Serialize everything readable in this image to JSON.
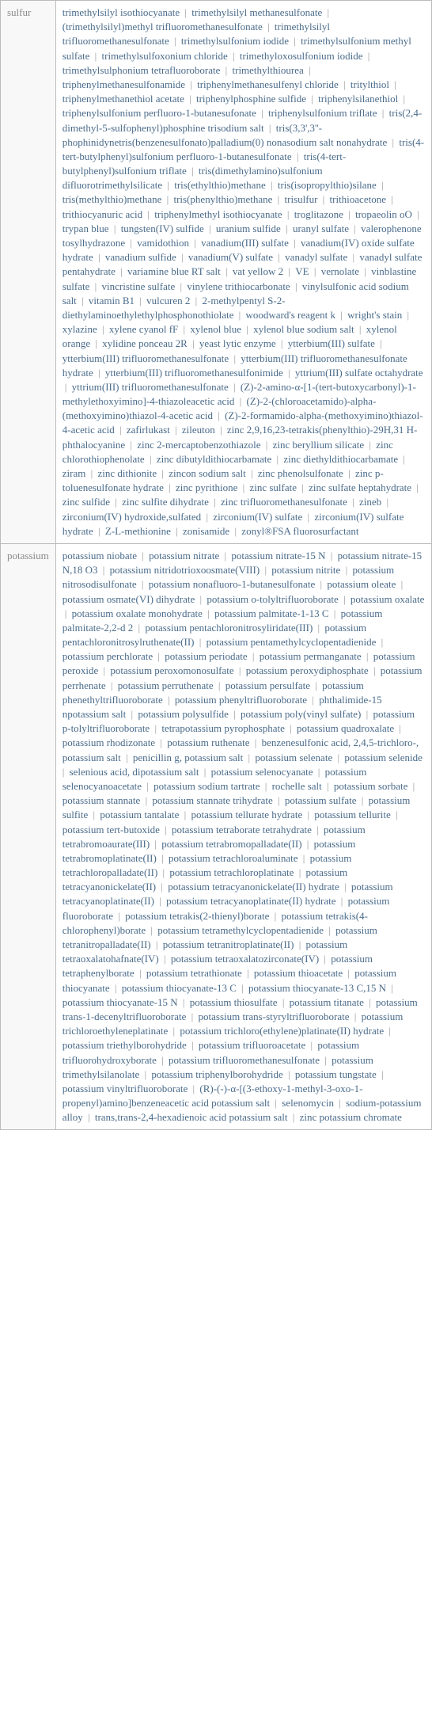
{
  "rows": [
    {
      "label": "sulfur",
      "items": [
        "trimethylsilyl isothiocyanate",
        "trimethylsilyl methanesulfonate",
        "(trimethylsilyl)methyl trifluoromethanesulfonate",
        "trimethylsilyl trifluoromethanesulfonate",
        "trimethylsulfonium iodide",
        "trimethylsulfonium methyl sulfate",
        "trimethylsulfoxonium chloride",
        "trimethyloxosulfonium iodide",
        "trimethylsulphonium tetrafluoroborate",
        "trimethylthiourea",
        "triphenylmethanesulfonamide",
        "triphenylmethanesulfenyl chloride",
        "tritylthiol",
        "triphenylmethanethiol acetate",
        "triphenylphosphine sulfide",
        "triphenylsilanethiol",
        "triphenylsulfonium perfluoro-1-butanesufonate",
        "triphenylsulfonium triflate",
        "tris(2,4-dimethyl-5-sulfophenyl)phosphine trisodium salt",
        "tris(3,3',3''-phophinidynetris(benzenesulfonato)palladium(0) nonasodium salt nonahydrate",
        "tris(4-tert-butylphenyl)sulfonium perfluoro-1-butanesulfonate",
        "tris(4-tert-butylphenyl)sulfonium triflate",
        "tris(dimethylamino)sulfonium difluorotrimethylsilicate",
        "tris(ethylthio)methane",
        "tris(isopropylthio)silane",
        "tris(methylthio)methane",
        "tris(phenylthio)methane",
        "trisulfur",
        "trithioacetone",
        "trithiocyanuric acid",
        "triphenylmethyl isothiocyanate",
        "troglitazone",
        "tropaeolin oO",
        "trypan blue",
        "tungsten(IV) sulfide",
        "uranium sulfide",
        "uranyl sulfate",
        "valerophenone tosylhydrazone",
        "vamidothion",
        "vanadium(III) sulfate",
        "vanadium(IV) oxide sulfate hydrate",
        "vanadium sulfide",
        "vanadium(V) sulfate",
        "vanadyl sulfate",
        "vanadyl sulfate pentahydrate",
        "variamine blue RT salt",
        "vat yellow 2",
        "VE",
        "vernolate",
        "vinblastine sulfate",
        "vincristine sulfate",
        "vinylene trithiocarbonate",
        "vinylsulfonic acid sodium salt",
        "vitamin B1",
        "vulcuren 2",
        "2-methylpentyl S-2-diethylaminoethylethylphosphonothiolate",
        "woodward's reagent k",
        "wright's stain",
        "xylazine",
        "xylene cyanol fF",
        "xylenol blue",
        "xylenol blue sodium salt",
        "xylenol orange",
        "xylidine ponceau 2R",
        "yeast lytic enzyme",
        "ytterbium(III) sulfate",
        "ytterbium(III) trifluoromethanesulfonate",
        "ytterbium(III) trifluoromethanesulfonate hydrate",
        "ytterbium(III) trifluoromethanesulfonimide",
        "yttrium(III) sulfate octahydrate",
        "yttrium(III) trifluoromethanesulfonate",
        "(Z)-2-amino-α-[1-(tert-butoxycarbonyl)-1-methylethoxyimino]-4-thiazoleacetic acid",
        "(Z)-2-(chloroacetamido)-alpha-(methoxyimino)thiazol-4-acetic acid",
        "(Z)-2-formamido-alpha-(methoxyimino)thiazol-4-acetic acid",
        "zafirlukast",
        "zileuton",
        "zinc 2,9,16,23-tetrakis(phenylthio)-29H,31 H-phthalocyanine",
        "zinc 2-mercaptobenzothiazole",
        "zinc beryllium silicate",
        "zinc chlorothiophenolate",
        "zinc dibutyldithiocarbamate",
        "zinc diethyldithiocarbamate",
        "ziram",
        "zinc dithionite",
        "zincon sodium salt",
        "zinc phenolsulfonate",
        "zinc p-toluenesulfonate hydrate",
        "zinc pyrithione",
        "zinc sulfate",
        "zinc sulfate heptahydrate",
        "zinc sulfide",
        "zinc sulfite dihydrate",
        "zinc trifluoromethanesulfonate",
        "zineb",
        "zirconium(IV) hydroxide,sulfated",
        "zirconium(IV) sulfate",
        "zirconium(IV) sulfate hydrate",
        "Z-L-methionine",
        "zonisamide",
        "zonyl®FSA fluorosurfactant"
      ]
    },
    {
      "label": "potassium",
      "items": [
        "potassium niobate",
        "potassium nitrate",
        "potassium nitrate-15 N",
        "potassium nitrate-15 N,18 O3",
        "potassium nitridotrioxoosmate(VIII)",
        "potassium nitrite",
        "potassium nitrosodisulfonate",
        "potassium nonafluoro-1-butanesulfonate",
        "potassium oleate",
        "potassium osmate(VI) dihydrate",
        "potassium o-tolyltrifluoroborate",
        "potassium oxalate",
        "potassium oxalate monohydrate",
        "potassium palmitate-1-13 C",
        "potassium palmitate-2,2-d 2",
        "potassium pentachloronitrosyliridate(III)",
        "potassium pentachloronitrosylruthenate(II)",
        "potassium pentamethylcyclopentadienide",
        "potassium perchlorate",
        "potassium periodate",
        "potassium permanganate",
        "potassium peroxide",
        "potassium peroxomonosulfate",
        "potassium peroxydiphosphate",
        "potassium perrhenate",
        "potassium perruthenate",
        "potassium persulfate",
        "potassium phenethyltrifluoroborate",
        "potassium phenyltrifluoroborate",
        "phthalimide-15 npotassium salt",
        "potassium polysulfide",
        "potassium poly(vinyl sulfate)",
        "potassium p-tolyltrifluoroborate",
        "tetrapotassium pyrophosphate",
        "potassium quadroxalate",
        "potassium rhodizonate",
        "potassium ruthenate",
        "benzenesulfonic acid, 2,4,5-trichloro-, potassium salt",
        "penicillin g, potassium salt",
        "potassium selenate",
        "potassium selenide",
        "selenious acid, dipotassium salt",
        "potassium selenocyanate",
        "potassium selenocyanoacetate",
        "potassium sodium tartrate",
        "rochelle salt",
        "potassium sorbate",
        "potassium stannate",
        "potassium stannate trihydrate",
        "potassium sulfate",
        "potassium sulfite",
        "potassium tantalate",
        "potassium tellurate hydrate",
        "potassium tellurite",
        "potassium tert-butoxide",
        "potassium tetraborate tetrahydrate",
        "potassium tetrabromoaurate(III)",
        "potassium tetrabromopalladate(II)",
        "potassium tetrabromoplatinate(II)",
        "potassium tetrachloroaluminate",
        "potassium tetrachloropalladate(II)",
        "potassium tetrachloroplatinate",
        "potassium tetracyanonickelate(II)",
        "potassium tetracyanonickelate(II) hydrate",
        "potassium tetracyanoplatinate(II)",
        "potassium tetracyanoplatinate(II) hydrate",
        "potassium fluoroborate",
        "potassium tetrakis(2-thienyl)borate",
        "potassium tetrakis(4-chlorophenyl)borate",
        "potassium tetramethylcyclopentadienide",
        "potassium tetranitropalladate(II)",
        "potassium tetranitroplatinate(II)",
        "potassium tetraoxalatohafnate(IV)",
        "potassium tetraoxalatozirconate(IV)",
        "potassium tetraphenylborate",
        "potassium tetrathionate",
        "potassium thioacetate",
        "potassium thiocyanate",
        "potassium thiocyanate-13 C",
        "potassium thiocyanate-13 C,15 N",
        "potassium thiocyanate-15 N",
        "potassium thiosulfate",
        "potassium titanate",
        "potassium trans-1-decenyltrifluoroborate",
        "potassium trans-styryltrifluoroborate",
        "potassium trichloroethyleneplatinate",
        "potassium trichloro(ethylene)platinate(II) hydrate",
        "potassium triethylborohydride",
        "potassium trifluoroacetate",
        "potassium trifluorohydroxyborate",
        "potassium trifluoromethanesulfonate",
        "potassium trimethylsilanolate",
        "potassium triphenylborohydride",
        "potassium tungstate",
        "potassium vinyltrifluoroborate",
        "(R)-(-)-α-[(3-ethoxy-1-methyl-3-oxo-1-propenyl)amino]benzeneacetic acid potassium salt",
        "selenomycin",
        "sodium-potassium alloy",
        "trans,trans-2,4-hexadienoic acid potassium salt",
        "zinc potassium chromate"
      ]
    }
  ],
  "separator": "|",
  "colors": {
    "label_text": "#8a8a8a",
    "item_text": "#4a6b8a",
    "separator_text": "#999999",
    "border": "#bbbbbb",
    "label_bg": "#f8f8f8"
  }
}
